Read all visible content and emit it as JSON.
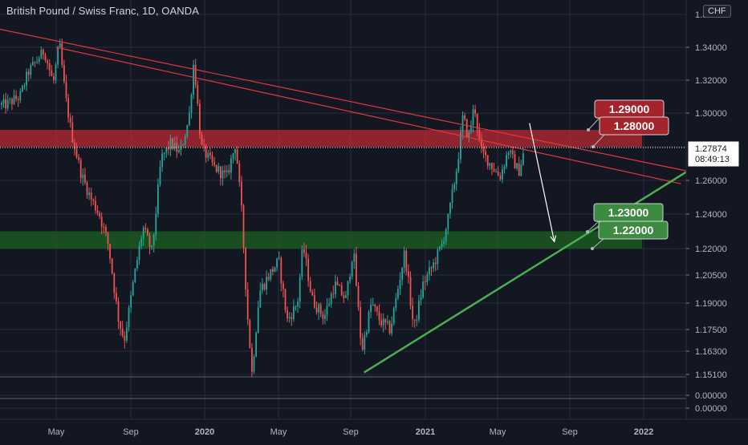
{
  "header": {
    "title": "British Pound / Swiss Franc, 1D, OANDA",
    "currency_button": "CHF"
  },
  "price_axis": {
    "ticks": [
      "1.34000",
      "1.32000",
      "1.30000",
      "1.26000",
      "1.24000",
      "1.22000",
      "1.20500",
      "1.19000",
      "1.17500",
      "1.16300",
      "1.15100",
      "0.00000",
      "0.00000"
    ]
  },
  "time_axis": {
    "ticks": [
      {
        "label": "May",
        "bold": false
      },
      {
        "label": "Sep",
        "bold": false
      },
      {
        "label": "2020",
        "bold": true
      },
      {
        "label": "May",
        "bold": false
      },
      {
        "label": "Sep",
        "bold": false
      },
      {
        "label": "2021",
        "bold": true
      },
      {
        "label": "May",
        "bold": false
      },
      {
        "label": "Sep",
        "bold": false
      },
      {
        "label": "2022",
        "bold": true
      }
    ]
  },
  "current_price": {
    "value": "1.27874",
    "countdown": "08:49:13"
  },
  "colors": {
    "background": "#131722",
    "grid": "#2a2e39",
    "up": "#26a69a",
    "down": "#ef5350",
    "resistance_zone": "#b22833",
    "support_zone": "#1b5e20",
    "trendline_red": "#e0393e",
    "trendline_green": "#4caf50",
    "label_red": "#a5242c",
    "label_green": "#3d8b40"
  },
  "annotations": {
    "labels": [
      "1.29000",
      "1.28000",
      "1.23000",
      "1.22000"
    ]
  },
  "chart_data": {
    "type": "candlestick",
    "title": "British Pound / Swiss Franc, 1D, OANDA",
    "symbol": "GBPCHF",
    "timeframe": "1D",
    "x_ticks": [
      "May",
      "Sep",
      "2020",
      "May",
      "Sep",
      "2021",
      "May",
      "Sep",
      "2022"
    ],
    "x_range": [
      "2019-02",
      "2022-03"
    ],
    "y_ticks": [
      1.34,
      1.32,
      1.3,
      1.26,
      1.24,
      1.22,
      1.205,
      1.19,
      1.175,
      1.163,
      1.151
    ],
    "last_price": 1.27874,
    "series": [
      {
        "name": "",
        "points": [
          [
            "2019-02-05",
            1.305
          ],
          [
            "2019-03-01",
            1.31
          ],
          [
            "2019-03-15",
            1.325
          ],
          [
            "2019-04-10",
            1.338
          ],
          [
            "2019-04-25",
            1.318
          ],
          [
            "2019-05-05",
            1.343
          ],
          [
            "2019-05-15",
            1.31
          ],
          [
            "2019-05-25",
            1.288
          ],
          [
            "2019-06-10",
            1.264
          ],
          [
            "2019-06-25",
            1.25
          ],
          [
            "2019-07-10",
            1.24
          ],
          [
            "2019-07-25",
            1.222
          ],
          [
            "2019-08-10",
            1.182
          ],
          [
            "2019-08-20",
            1.169
          ],
          [
            "2019-09-05",
            1.203
          ],
          [
            "2019-09-20",
            1.232
          ],
          [
            "2019-10-05",
            1.218
          ],
          [
            "2019-10-20",
            1.273
          ],
          [
            "2019-11-05",
            1.282
          ],
          [
            "2019-11-20",
            1.276
          ],
          [
            "2019-12-05",
            1.297
          ],
          [
            "2019-12-13",
            1.332
          ],
          [
            "2019-12-25",
            1.28
          ],
          [
            "2020-01-15",
            1.268
          ],
          [
            "2020-02-05",
            1.262
          ],
          [
            "2020-02-20",
            1.282
          ],
          [
            "2020-03-01",
            1.24
          ],
          [
            "2020-03-10",
            1.185
          ],
          [
            "2020-03-18",
            1.151
          ],
          [
            "2020-03-30",
            1.196
          ],
          [
            "2020-04-15",
            1.205
          ],
          [
            "2020-05-01",
            1.213
          ],
          [
            "2020-05-15",
            1.18
          ],
          [
            "2020-06-01",
            1.19
          ],
          [
            "2020-06-10",
            1.222
          ],
          [
            "2020-06-25",
            1.192
          ],
          [
            "2020-07-15",
            1.182
          ],
          [
            "2020-08-01",
            1.2
          ],
          [
            "2020-08-20",
            1.192
          ],
          [
            "2020-09-01",
            1.22
          ],
          [
            "2020-09-15",
            1.163
          ],
          [
            "2020-10-01",
            1.19
          ],
          [
            "2020-10-15",
            1.18
          ],
          [
            "2020-11-01",
            1.175
          ],
          [
            "2020-11-15",
            1.2
          ],
          [
            "2020-11-25",
            1.218
          ],
          [
            "2020-12-10",
            1.175
          ],
          [
            "2020-12-25",
            1.2
          ],
          [
            "2021-01-10",
            1.21
          ],
          [
            "2021-01-25",
            1.222
          ],
          [
            "2021-02-05",
            1.238
          ],
          [
            "2021-02-20",
            1.27
          ],
          [
            "2021-03-01",
            1.298
          ],
          [
            "2021-03-10",
            1.285
          ],
          [
            "2021-03-20",
            1.305
          ],
          [
            "2021-03-30",
            1.278
          ],
          [
            "2021-04-15",
            1.27
          ],
          [
            "2021-05-01",
            1.262
          ],
          [
            "2021-05-15",
            1.278
          ],
          [
            "2021-06-01",
            1.265
          ],
          [
            "2021-06-11",
            1.279
          ]
        ]
      }
    ],
    "zones": [
      {
        "name": "resistance",
        "from": 1.28,
        "to": 1.29
      },
      {
        "name": "support",
        "from": 1.22,
        "to": 1.23
      }
    ],
    "trendlines": [
      {
        "color": "red",
        "from": [
          "2019-01-15",
          1.352
        ],
        "to": [
          "2022-03-15",
          1.265
        ]
      },
      {
        "color": "red",
        "from": [
          "2019-05-01",
          1.34
        ],
        "to": [
          "2022-02-25",
          1.258
        ]
      },
      {
        "color": "green",
        "from": [
          "2020-09-20",
          1.152
        ],
        "to": [
          "2022-03-10",
          1.266
        ]
      }
    ],
    "projection_arrow": {
      "from": [
        "2021-06-20",
        1.294
      ],
      "to": [
        "2021-07-31",
        1.224
      ]
    },
    "annotations": [
      "1.29000",
      "1.28000",
      "1.23000",
      "1.22000"
    ]
  }
}
